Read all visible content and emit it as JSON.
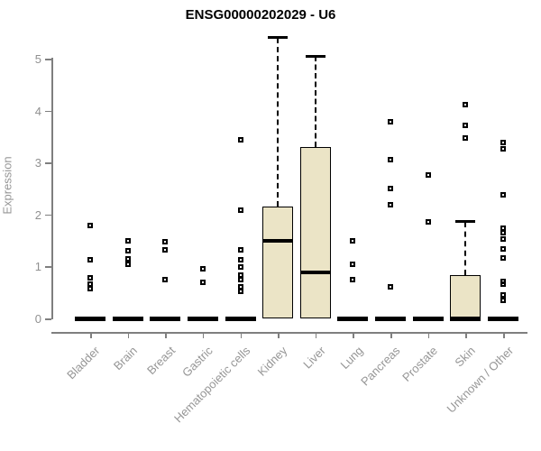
{
  "title": "ENSG00000202029 - U6",
  "colors": {
    "box_fill": "#EBE4C6",
    "box_border": "#000000",
    "axis": "#7f7f7f",
    "tick_label": "#909090",
    "category_label": "#969696",
    "title": "#000000"
  },
  "chart_data": {
    "type": "boxplot",
    "title": "ENSG00000202029 - U6",
    "xlabel": "",
    "ylabel": "Expression",
    "ylim": [
      0,
      5.5
    ],
    "yticks": [
      0,
      1,
      2,
      3,
      4,
      5
    ],
    "grid": false,
    "legend": false,
    "categories": [
      "Bladder",
      "Brain",
      "Breast",
      "Gastric",
      "Hematopoietic cells",
      "Kidney",
      "Liver",
      "Lung",
      "Pancreas",
      "Prostate",
      "Skin",
      "Unknown / Other"
    ],
    "boxes": [
      {
        "category": "Bladder",
        "min": 0,
        "q1": 0,
        "median": 0,
        "q3": 0,
        "whisker_high": 0,
        "outliers": [
          1.79,
          1.13,
          0.78,
          0.66,
          0.57
        ]
      },
      {
        "category": "Brain",
        "min": 0,
        "q1": 0,
        "median": 0,
        "q3": 0,
        "whisker_high": 0,
        "outliers": [
          1.49,
          1.3,
          1.15,
          1.04
        ]
      },
      {
        "category": "Breast",
        "min": 0,
        "q1": 0,
        "median": 0,
        "q3": 0,
        "whisker_high": 0,
        "outliers": [
          1.48,
          1.32,
          0.75
        ]
      },
      {
        "category": "Gastric",
        "min": 0,
        "q1": 0,
        "median": 0,
        "q3": 0,
        "whisker_high": 0,
        "outliers": [
          0.95,
          0.69
        ]
      },
      {
        "category": "Hematopoietic cells",
        "min": 0,
        "q1": 0,
        "median": 0,
        "q3": 0,
        "whisker_high": 0,
        "outliers": [
          3.44,
          2.08,
          1.32,
          1.13,
          0.99,
          0.83,
          0.75,
          0.61,
          0.52
        ]
      },
      {
        "category": "Kidney",
        "min": 0,
        "q1": 0,
        "median": 1.49,
        "q3": 2.15,
        "whisker_high": 5.4,
        "outliers": []
      },
      {
        "category": "Liver",
        "min": 0,
        "q1": 0,
        "median": 0.89,
        "q3": 3.3,
        "whisker_high": 5.05,
        "outliers": []
      },
      {
        "category": "Lung",
        "min": 0,
        "q1": 0,
        "median": 0,
        "q3": 0,
        "whisker_high": 0,
        "outliers": [
          1.49,
          1.04,
          0.75
        ]
      },
      {
        "category": "Pancreas",
        "min": 0,
        "q1": 0,
        "median": 0,
        "q3": 0,
        "whisker_high": 0,
        "outliers": [
          3.78,
          3.06,
          2.5,
          2.19,
          0.61
        ]
      },
      {
        "category": "Prostate",
        "min": 0,
        "q1": 0,
        "median": 0,
        "q3": 0,
        "whisker_high": 0,
        "outliers": [
          2.76,
          1.86
        ]
      },
      {
        "category": "Skin",
        "min": 0,
        "q1": 0,
        "median": 0,
        "q3": 0.83,
        "whisker_high": 1.86,
        "outliers": [
          4.11,
          3.72,
          3.47
        ]
      },
      {
        "category": "Unknown / Other",
        "min": 0,
        "q1": 0,
        "median": 0,
        "q3": 0,
        "whisker_high": 0,
        "outliers": [
          3.39,
          3.26,
          2.38,
          1.74,
          1.65,
          1.53,
          1.34,
          1.16,
          0.71,
          0.66,
          0.45,
          0.35
        ]
      }
    ]
  }
}
